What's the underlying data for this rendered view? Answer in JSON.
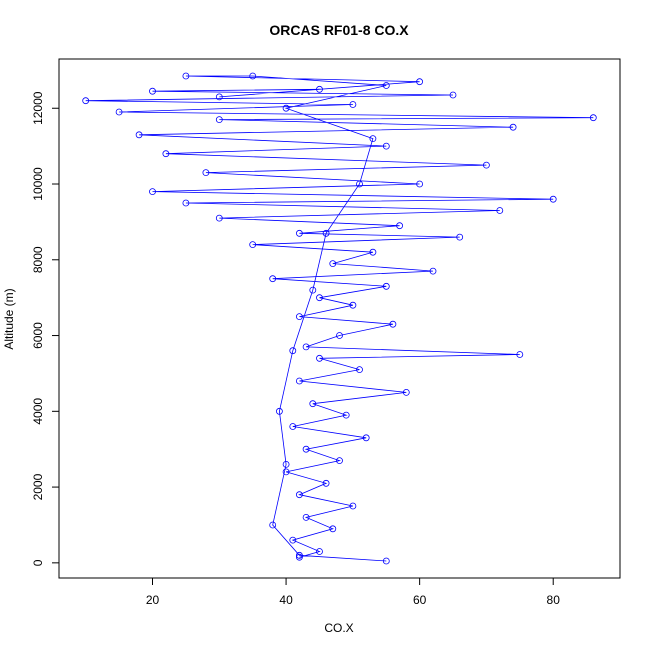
{
  "chart_data": {
    "type": "scatter",
    "title": "ORCAS RF01-8 CO.X",
    "xlabel": "CO.X",
    "ylabel": "Altitude (m)",
    "xlim": [
      6,
      90
    ],
    "ylim": [
      -400,
      13300
    ],
    "x_ticks": [
      20,
      40,
      60,
      80
    ],
    "y_ticks": [
      0,
      2000,
      4000,
      6000,
      8000,
      10000,
      12000
    ],
    "grid": false,
    "legend": "none",
    "marker": "open-circle",
    "connected": true,
    "color": "#0000ff",
    "series": [
      {
        "points": [
          [
            42,
            150
          ],
          [
            45,
            300
          ],
          [
            41,
            600
          ],
          [
            47,
            900
          ],
          [
            43,
            1200
          ],
          [
            50,
            1500
          ],
          [
            42,
            1800
          ],
          [
            46,
            2100
          ],
          [
            40,
            2400
          ],
          [
            48,
            2700
          ],
          [
            43,
            3000
          ],
          [
            52,
            3300
          ],
          [
            41,
            3600
          ],
          [
            49,
            3900
          ],
          [
            44,
            4200
          ],
          [
            58,
            4500
          ],
          [
            42,
            4800
          ],
          [
            51,
            5100
          ],
          [
            45,
            5400
          ],
          [
            75,
            5500
          ],
          [
            43,
            5700
          ],
          [
            48,
            6000
          ],
          [
            56,
            6300
          ],
          [
            42,
            6500
          ],
          [
            50,
            6800
          ],
          [
            45,
            7000
          ],
          [
            55,
            7300
          ],
          [
            38,
            7500
          ],
          [
            62,
            7700
          ],
          [
            47,
            7900
          ],
          [
            53,
            8200
          ],
          [
            35,
            8400
          ],
          [
            66,
            8600
          ],
          [
            42,
            8700
          ],
          [
            57,
            8900
          ],
          [
            30,
            9100
          ],
          [
            72,
            9300
          ],
          [
            25,
            9500
          ],
          [
            80,
            9600
          ],
          [
            20,
            9800
          ],
          [
            60,
            10000
          ],
          [
            28,
            10300
          ],
          [
            70,
            10500
          ],
          [
            22,
            10800
          ],
          [
            55,
            11000
          ],
          [
            18,
            11300
          ],
          [
            74,
            11500
          ],
          [
            30,
            11700
          ],
          [
            86,
            11750
          ],
          [
            15,
            11900
          ],
          [
            50,
            12100
          ],
          [
            10,
            12200
          ],
          [
            65,
            12350
          ],
          [
            20,
            12450
          ],
          [
            45,
            12500
          ],
          [
            30,
            12300
          ],
          [
            60,
            12700
          ],
          [
            25,
            12850
          ],
          [
            35,
            12850
          ],
          [
            55,
            12600
          ],
          [
            40,
            12000
          ],
          [
            53,
            11200
          ],
          [
            51,
            10000
          ],
          [
            46,
            8700
          ],
          [
            44,
            7200
          ],
          [
            41,
            5600
          ],
          [
            39,
            4000
          ],
          [
            40,
            2600
          ],
          [
            38,
            1000
          ],
          [
            42,
            200
          ],
          [
            55,
            50
          ]
        ]
      }
    ]
  }
}
